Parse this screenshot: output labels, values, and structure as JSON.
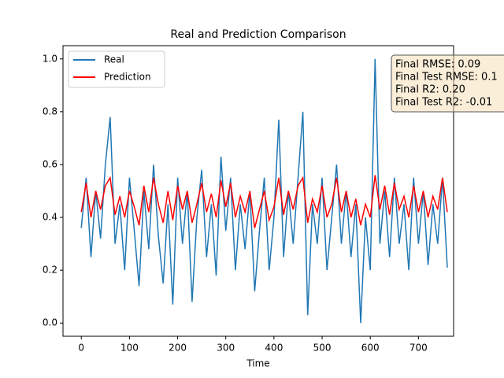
{
  "chart_data": {
    "type": "line",
    "title": "Real and Prediction Comparison",
    "x_label": "Time",
    "x": [
      0,
      10,
      20,
      30,
      40,
      50,
      60,
      70,
      80,
      90,
      100,
      110,
      120,
      130,
      140,
      150,
      160,
      170,
      180,
      190,
      200,
      210,
      220,
      230,
      240,
      250,
      260,
      270,
      280,
      290,
      300,
      310,
      320,
      330,
      340,
      350,
      360,
      370,
      380,
      390,
      400,
      410,
      420,
      430,
      440,
      450,
      460,
      470,
      480,
      490,
      500,
      510,
      520,
      530,
      540,
      550,
      560,
      570,
      580,
      590,
      600,
      610,
      620,
      630,
      640,
      650,
      660,
      670,
      680,
      690,
      700,
      710,
      720,
      730,
      740,
      750,
      760
    ],
    "series": [
      {
        "name": "Real",
        "color": "#1f77b4",
        "values": [
          0.36,
          0.55,
          0.25,
          0.5,
          0.32,
          0.6,
          0.78,
          0.3,
          0.45,
          0.2,
          0.55,
          0.35,
          0.14,
          0.5,
          0.28,
          0.6,
          0.33,
          0.15,
          0.45,
          0.07,
          0.55,
          0.3,
          0.5,
          0.08,
          0.4,
          0.58,
          0.25,
          0.45,
          0.18,
          0.63,
          0.35,
          0.55,
          0.2,
          0.45,
          0.28,
          0.5,
          0.12,
          0.35,
          0.55,
          0.2,
          0.4,
          0.77,
          0.25,
          0.5,
          0.3,
          0.55,
          0.8,
          0.03,
          0.45,
          0.3,
          0.55,
          0.2,
          0.4,
          0.6,
          0.3,
          0.5,
          0.25,
          0.45,
          0.0,
          0.4,
          0.2,
          1.0,
          0.3,
          0.5,
          0.25,
          0.55,
          0.3,
          0.45,
          0.2,
          0.55,
          0.3,
          0.5,
          0.22,
          0.45,
          0.3,
          0.55,
          0.21
        ]
      },
      {
        "name": "Prediction",
        "color": "#ff0000",
        "values": [
          0.42,
          0.53,
          0.4,
          0.5,
          0.43,
          0.52,
          0.55,
          0.41,
          0.48,
          0.4,
          0.5,
          0.44,
          0.37,
          0.52,
          0.42,
          0.55,
          0.45,
          0.38,
          0.5,
          0.39,
          0.52,
          0.43,
          0.5,
          0.38,
          0.45,
          0.53,
          0.42,
          0.49,
          0.4,
          0.54,
          0.44,
          0.53,
          0.4,
          0.48,
          0.42,
          0.5,
          0.36,
          0.43,
          0.5,
          0.39,
          0.44,
          0.55,
          0.41,
          0.5,
          0.43,
          0.52,
          0.55,
          0.38,
          0.47,
          0.42,
          0.52,
          0.4,
          0.45,
          0.55,
          0.42,
          0.5,
          0.4,
          0.47,
          0.37,
          0.45,
          0.4,
          0.56,
          0.43,
          0.52,
          0.41,
          0.53,
          0.43,
          0.48,
          0.4,
          0.52,
          0.42,
          0.5,
          0.4,
          0.48,
          0.43,
          0.55,
          0.42
        ]
      }
    ],
    "xlim": [
      -38,
      773
    ],
    "ylim": [
      -0.05,
      1.05
    ],
    "xticks": [
      0,
      100,
      200,
      300,
      400,
      500,
      600,
      700
    ],
    "yticks": [
      {
        "value": 0,
        "label": "0.0"
      },
      0.2,
      0.4,
      0.6,
      0.8,
      {
        "value": 1,
        "label": "1.0"
      }
    ],
    "legend": "upper left",
    "annotations": [
      "Final RMSE: 0.09",
      "Final Test RMSE: 0.1",
      "Final R2: 0.20",
      "Final Test R2: -0.01"
    ]
  }
}
